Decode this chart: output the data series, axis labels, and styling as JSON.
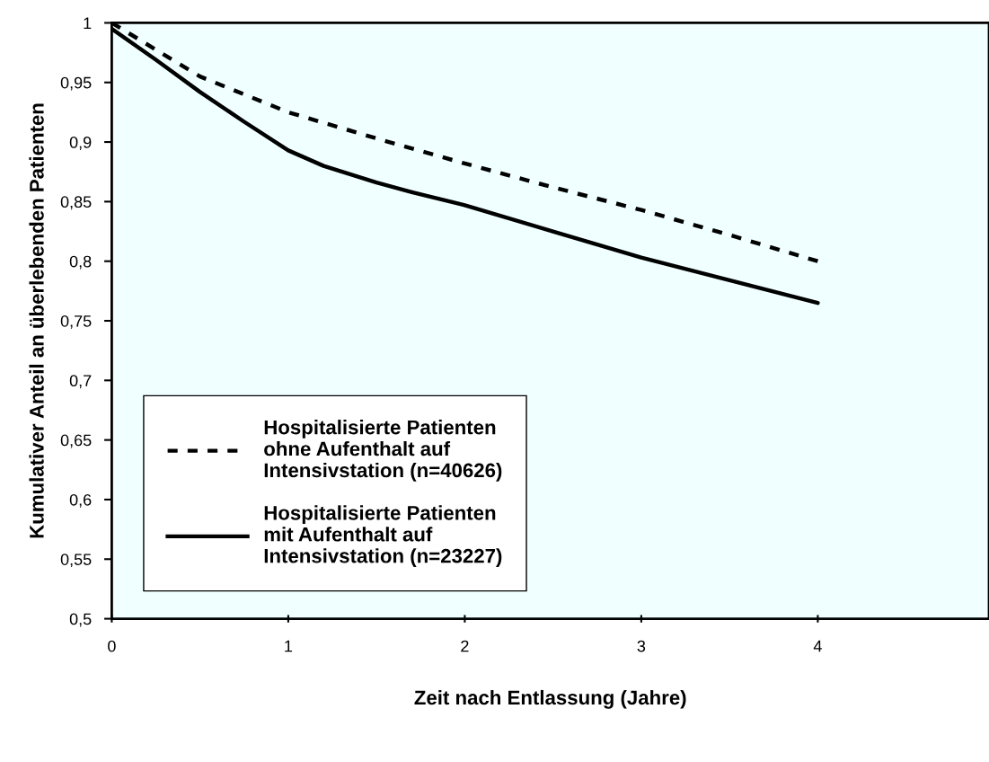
{
  "chart_data": {
    "type": "line",
    "xlabel": "Zeit nach Entlassung (Jahre)",
    "ylabel": "Kumulativer Anteil an überlebenden Patienten",
    "x": [
      0,
      0.25,
      0.5,
      0.75,
      1,
      1.2,
      1.5,
      1.7,
      2,
      2.5,
      3,
      3.5,
      4
    ],
    "series": [
      {
        "name": "Hospitalisierte Patienten ohne Aufenthalt auf Intensivstation (n=40626)",
        "color": "#000000",
        "line_style": "dashed",
        "x": [
          0,
          0.5,
          1,
          1.5,
          2,
          2.5,
          3,
          3.5,
          4
        ],
        "values": [
          1.0,
          0.955,
          0.925,
          0.903,
          0.882,
          0.862,
          0.843,
          0.822,
          0.8
        ]
      },
      {
        "name": "Hospitalisierte Patienten mit Aufenthalt auf Intensivstation (n=23227)",
        "color": "#000000",
        "line_style": "solid",
        "values": [
          0.995,
          0.969,
          0.942,
          0.917,
          0.893,
          0.88,
          0.866,
          0.858,
          0.847,
          0.825,
          0.803,
          0.784,
          0.765
        ]
      }
    ],
    "xlim": [
      0,
      4.97
    ],
    "xticks": [
      0,
      1,
      2,
      3,
      4
    ],
    "ylim": [
      0.5,
      1
    ],
    "yticks": [
      {
        "value": 0.5,
        "label": "0,5"
      },
      {
        "value": 0.55,
        "label": "0,55"
      },
      {
        "value": 0.6,
        "label": "0,6"
      },
      {
        "value": 0.65,
        "label": "0,65"
      },
      {
        "value": 0.7,
        "label": "0,7"
      },
      {
        "value": 0.75,
        "label": "0,75"
      },
      {
        "value": 0.8,
        "label": "0,8"
      },
      {
        "value": 0.85,
        "label": "0,85"
      },
      {
        "value": 0.9,
        "label": "0,9"
      },
      {
        "value": 0.95,
        "label": "0,95"
      },
      {
        "value": 1,
        "label": "1"
      }
    ],
    "grid": false,
    "legend": "bottom left"
  }
}
